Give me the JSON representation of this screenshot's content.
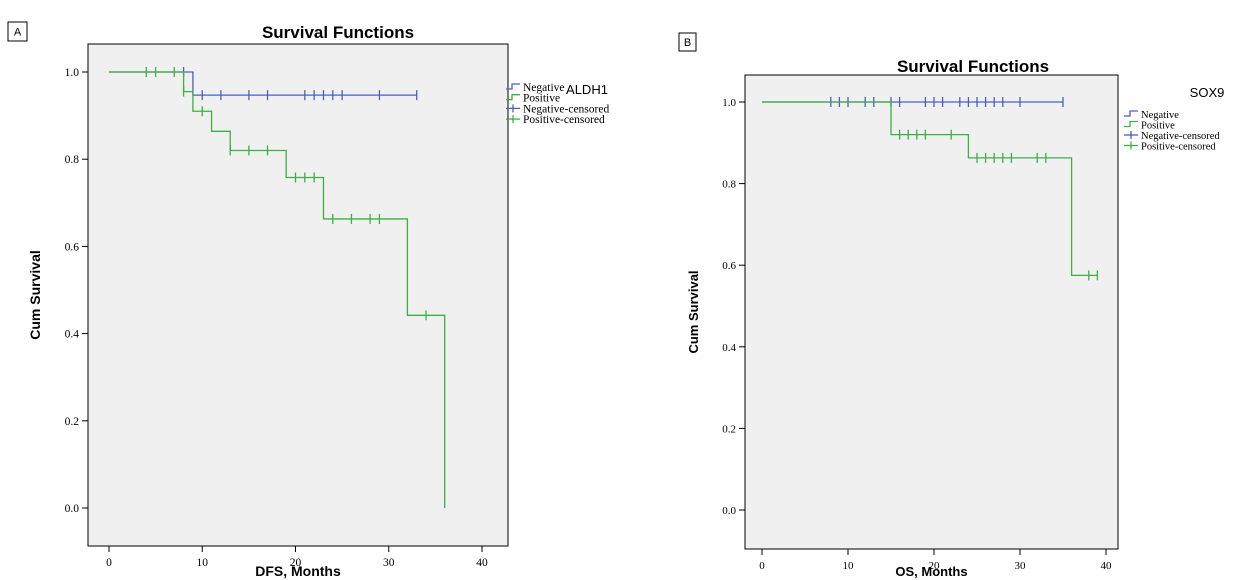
{
  "chart_data": [
    {
      "type": "line",
      "step": true,
      "panel_label": "A",
      "title": "Survival Functions",
      "xlabel": "DFS, Months",
      "ylabel": "Cum Survival",
      "xlim": [
        0,
        40
      ],
      "ylim": [
        0.0,
        1.0
      ],
      "xticks": [
        "0",
        "10",
        "20",
        "30",
        "40"
      ],
      "yticks": [
        "0.0",
        "0.2",
        "0.4",
        "0.6",
        "0.8",
        "1.0"
      ],
      "grid": false,
      "legend_title": "ALDH1",
      "legend": [
        "Negative",
        "Positive",
        "Negative-censored",
        "Positive-censored"
      ],
      "colors": {
        "negative": "#4a5fc1",
        "positive": "#3cb043",
        "plot_bg": "#f0f0f0"
      },
      "series": [
        {
          "name": "Negative",
          "color": "#4a5fc1",
          "steps": [
            [
              0,
              1.0
            ],
            [
              9,
              0.947
            ],
            [
              33,
              0.947
            ]
          ],
          "censored": [
            [
              8,
              1.0
            ],
            [
              10,
              0.947
            ],
            [
              12,
              0.947
            ],
            [
              15,
              0.947
            ],
            [
              17,
              0.947
            ],
            [
              21,
              0.947
            ],
            [
              22,
              0.947
            ],
            [
              23,
              0.947
            ],
            [
              24,
              0.947
            ],
            [
              25,
              0.947
            ],
            [
              29,
              0.947
            ],
            [
              33,
              0.947
            ]
          ]
        },
        {
          "name": "Positive",
          "color": "#3cb043",
          "steps": [
            [
              0,
              1.0
            ],
            [
              8,
              0.955
            ],
            [
              9,
              0.91
            ],
            [
              11,
              0.864
            ],
            [
              13,
              0.82
            ],
            [
              19,
              0.758
            ],
            [
              23,
              0.663
            ],
            [
              32,
              0.442
            ],
            [
              36,
              0.0
            ]
          ],
          "censored": [
            [
              4,
              1.0
            ],
            [
              5,
              1.0
            ],
            [
              7,
              1.0
            ],
            [
              8,
              0.955
            ],
            [
              10,
              0.91
            ],
            [
              13,
              0.82
            ],
            [
              15,
              0.82
            ],
            [
              17,
              0.82
            ],
            [
              20,
              0.758
            ],
            [
              21,
              0.758
            ],
            [
              22,
              0.758
            ],
            [
              24,
              0.663
            ],
            [
              26,
              0.663
            ],
            [
              28,
              0.663
            ],
            [
              29,
              0.663
            ],
            [
              34,
              0.442
            ]
          ]
        }
      ]
    },
    {
      "type": "line",
      "step": true,
      "panel_label": "B",
      "title": "Survival Functions",
      "xlabel": "OS, Months",
      "ylabel": "Cum Survival",
      "xlim": [
        0,
        40
      ],
      "ylim": [
        0.0,
        1.0
      ],
      "xticks": [
        "0",
        "10",
        "20",
        "30",
        "40"
      ],
      "yticks": [
        "0.0",
        "0.2",
        "0.4",
        "0.6",
        "0.8",
        "1.0"
      ],
      "grid": false,
      "legend_title": "SOX9",
      "legend": [
        "Negative",
        "Positive",
        "Negative-censored",
        "Positive-censored"
      ],
      "colors": {
        "negative": "#4a5fc1",
        "positive": "#3cb043",
        "plot_bg": "#f0f0f0"
      },
      "series": [
        {
          "name": "Negative",
          "color": "#4a5fc1",
          "steps": [
            [
              0,
              1.0
            ],
            [
              35,
              1.0
            ]
          ],
          "censored": [
            [
              8,
              1.0
            ],
            [
              9,
              1.0
            ],
            [
              10,
              1.0
            ],
            [
              12,
              1.0
            ],
            [
              13,
              1.0
            ],
            [
              15,
              1.0
            ],
            [
              16,
              1.0
            ],
            [
              19,
              1.0
            ],
            [
              20,
              1.0
            ],
            [
              21,
              1.0
            ],
            [
              23,
              1.0
            ],
            [
              24,
              1.0
            ],
            [
              25,
              1.0
            ],
            [
              26,
              1.0
            ],
            [
              27,
              1.0
            ],
            [
              28,
              1.0
            ],
            [
              30,
              1.0
            ],
            [
              35,
              1.0
            ]
          ]
        },
        {
          "name": "Positive",
          "color": "#3cb043",
          "steps": [
            [
              0,
              1.0
            ],
            [
              15,
              0.92
            ],
            [
              24,
              0.863
            ],
            [
              36,
              0.575
            ],
            [
              39,
              0.575
            ]
          ],
          "censored": [
            [
              16,
              0.92
            ],
            [
              17,
              0.92
            ],
            [
              18,
              0.92
            ],
            [
              19,
              0.92
            ],
            [
              22,
              0.92
            ],
            [
              25,
              0.863
            ],
            [
              26,
              0.863
            ],
            [
              27,
              0.863
            ],
            [
              28,
              0.863
            ],
            [
              29,
              0.863
            ],
            [
              32,
              0.863
            ],
            [
              33,
              0.863
            ],
            [
              38,
              0.575
            ],
            [
              39,
              0.575
            ]
          ]
        }
      ]
    }
  ]
}
